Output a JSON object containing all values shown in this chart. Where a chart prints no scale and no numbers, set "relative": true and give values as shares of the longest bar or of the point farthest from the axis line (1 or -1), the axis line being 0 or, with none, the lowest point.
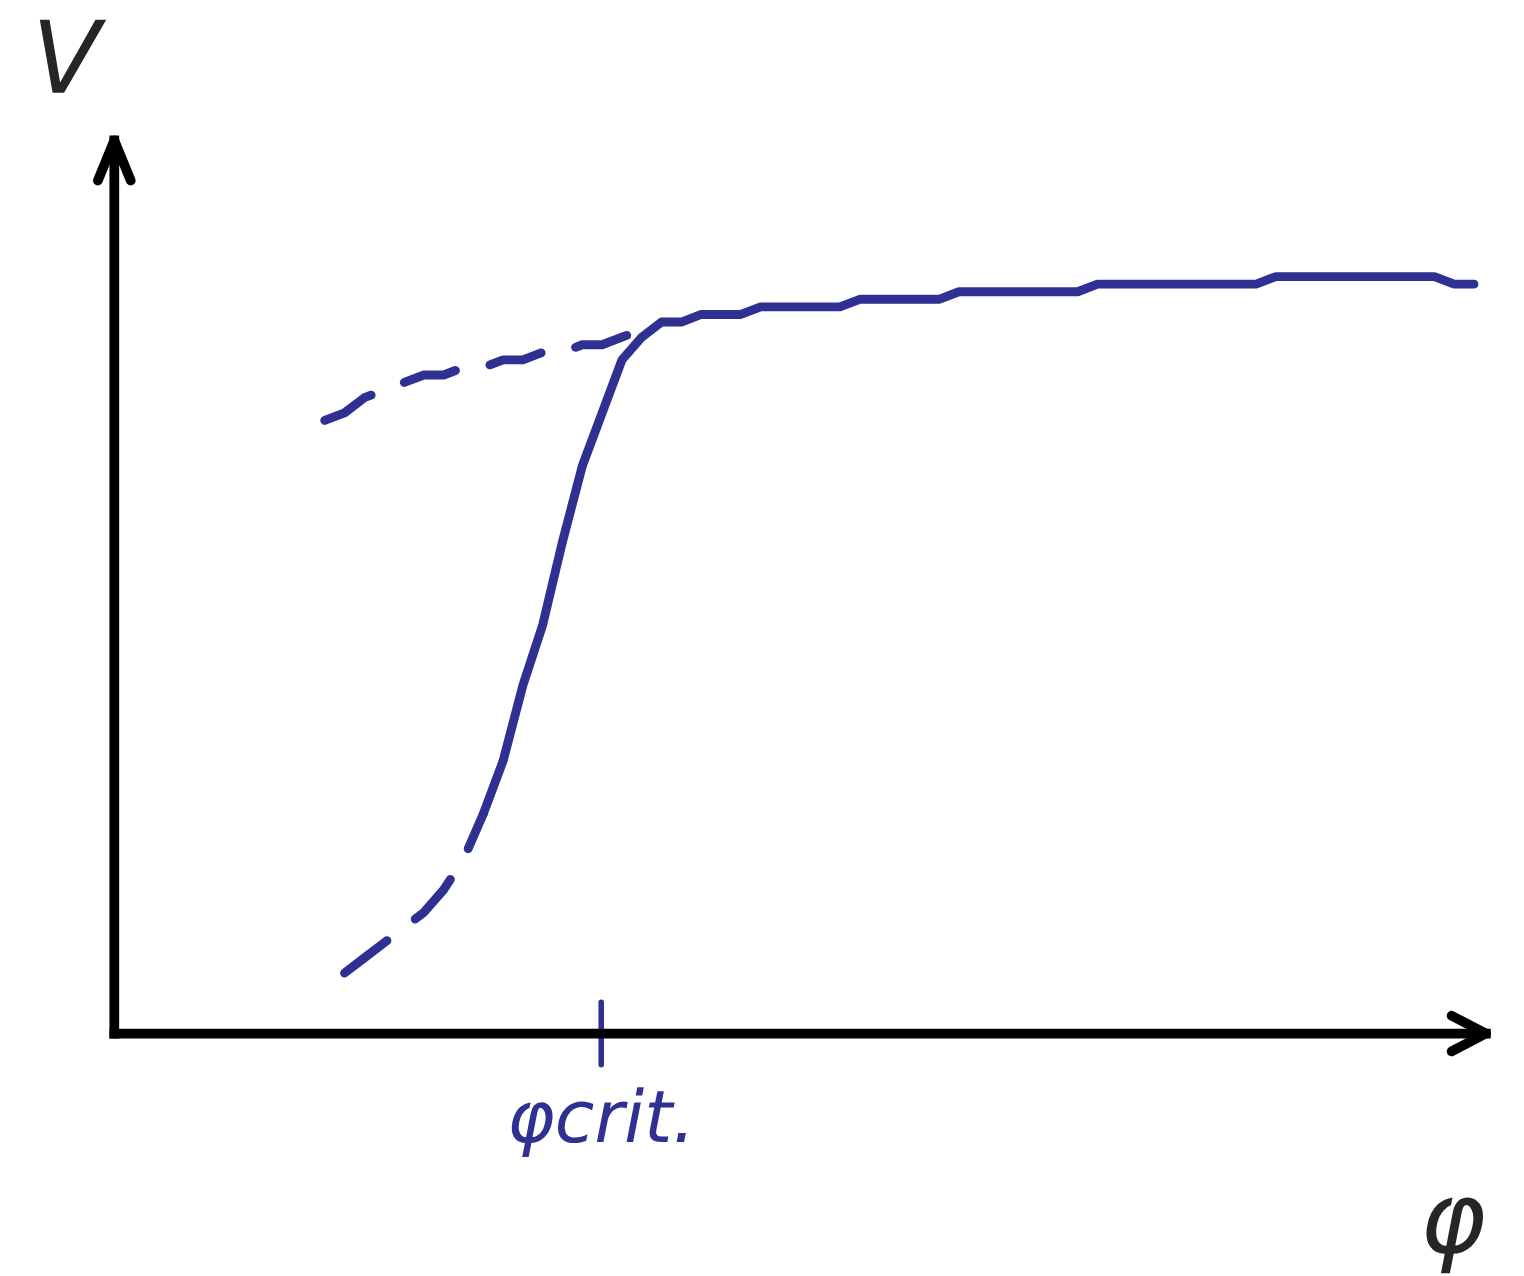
{
  "chart_data": {
    "type": "line",
    "relative": true,
    "xlabel": "φ",
    "ylabel": "V",
    "legend": false,
    "marker": "none",
    "categories": [
      null,
      null,
      null,
      null,
      null,
      null,
      null,
      null,
      null,
      null,
      null,
      null,
      null,
      null,
      null,
      null,
      null,
      null,
      null,
      null,
      null,
      null,
      null,
      null,
      null,
      null,
      null,
      null,
      null,
      null,
      null,
      null,
      null,
      null,
      null,
      null,
      null,
      null,
      null,
      null,
      null,
      null,
      null,
      null,
      null,
      null,
      null,
      null,
      null,
      null,
      null,
      null,
      null,
      null,
      null,
      null,
      null,
      null,
      null
    ],
    "annotations": [
      "φcrit."
    ],
    "series": [
      {
        "color": "#2e3192",
        "line_style": "dashed",
        "values": [
          0.81,
          0.82,
          0.84,
          0.85,
          0.86,
          0.87,
          0.87,
          0.88,
          0.88,
          0.89,
          0.89,
          0.9,
          0.9,
          0.91,
          0.91,
          0.92,
          0.93,
          null,
          null,
          null,
          null,
          null,
          null,
          null,
          null,
          null,
          null,
          null,
          null,
          null,
          null,
          null,
          null,
          null,
          null,
          null,
          null,
          null,
          null,
          null,
          null,
          null,
          null,
          null,
          null,
          null,
          null,
          null,
          null,
          null,
          null,
          null,
          null,
          null,
          null,
          null,
          null,
          null,
          null
        ]
      },
      {
        "color": "#2e3192",
        "line_style": "dashed",
        "values": [
          null,
          0.08,
          0.1,
          0.12,
          0.14,
          0.16,
          0.19,
          0.23,
          0.29,
          null,
          null,
          null,
          null,
          null,
          null,
          null,
          null,
          null,
          null,
          null,
          null,
          null,
          null,
          null,
          null,
          null,
          null,
          null,
          null,
          null,
          null,
          null,
          null,
          null,
          null,
          null,
          null,
          null,
          null,
          null,
          null,
          null,
          null,
          null,
          null,
          null,
          null,
          null,
          null,
          null,
          null,
          null,
          null,
          null,
          null,
          null,
          null,
          null,
          null
        ]
      },
      {
        "color": "#2e3192",
        "line_style": "solid",
        "values": [
          null,
          null,
          null,
          null,
          null,
          null,
          null,
          null,
          0.29,
          0.36,
          0.46,
          0.54,
          0.65,
          0.75,
          0.82,
          0.89,
          0.92,
          0.94,
          0.94,
          0.95,
          0.95,
          0.95,
          0.96,
          0.96,
          0.96,
          0.96,
          0.96,
          0.97,
          0.97,
          0.97,
          0.97,
          0.97,
          0.98,
          0.98,
          0.98,
          0.98,
          0.98,
          0.98,
          0.98,
          0.99,
          0.99,
          0.99,
          0.99,
          0.99,
          0.99,
          0.99,
          0.99,
          0.99,
          1.0,
          1.0,
          1.0,
          1.0,
          1.0,
          1.0,
          1.0,
          1.0,
          1.0,
          0.99,
          0.99
        ]
      }
    ]
  }
}
